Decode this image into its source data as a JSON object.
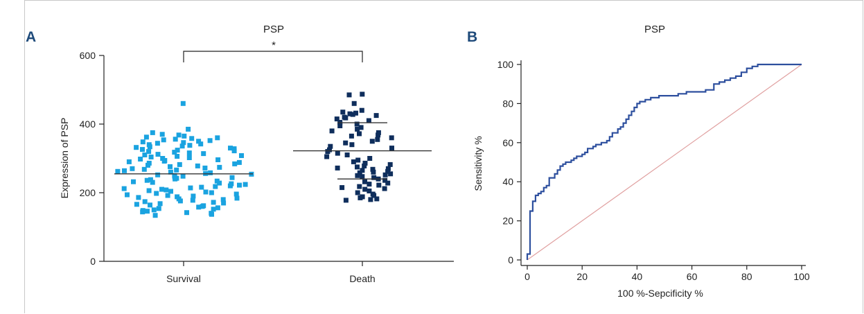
{
  "chart_data": [
    {
      "panel_label": "A",
      "type": "scatter",
      "title": "PSP",
      "ylabel": "Expression of PSP",
      "xlabel": "",
      "categories": [
        "Survival",
        "Death"
      ],
      "ylim": [
        0,
        600
      ],
      "yticks": [
        0,
        200,
        400,
        600
      ],
      "significance": "*",
      "colors": {
        "Survival": "#1aa3e0",
        "Death": "#0f2e5c",
        "lines": "#333333"
      },
      "summary": [
        {
          "group": "Survival",
          "mean": 255
        },
        {
          "group": "Death",
          "mean": 322,
          "sd_low": 240,
          "sd_high": 404
        }
      ],
      "series": [
        {
          "name": "Survival",
          "values": [
            460,
            385,
            375,
            370,
            368,
            365,
            362,
            360,
            358,
            356,
            354,
            352,
            350,
            348,
            346,
            344,
            342,
            340,
            338,
            336,
            334,
            332,
            330,
            328,
            326,
            324,
            322,
            320,
            318,
            316,
            314,
            312,
            310,
            308,
            306,
            304,
            302,
            300,
            298,
            296,
            294,
            292,
            290,
            288,
            286,
            284,
            282,
            280,
            278,
            276,
            274,
            272,
            270,
            268,
            266,
            264,
            262,
            260,
            258,
            256,
            254,
            252,
            250,
            248,
            246,
            244,
            242,
            240,
            238,
            236,
            234,
            232,
            230,
            228,
            226,
            224,
            222,
            220,
            218,
            216,
            214,
            212,
            210,
            208,
            206,
            204,
            202,
            200,
            198,
            196,
            194,
            192,
            190,
            188,
            186,
            184,
            182,
            180,
            178,
            176,
            174,
            172,
            170,
            168,
            166,
            164,
            162,
            160,
            158,
            156,
            154,
            152,
            150,
            148,
            146,
            144,
            142,
            140,
            137,
            134
          ]
        },
        {
          "name": "Death",
          "values": [
            487,
            485,
            460,
            440,
            435,
            432,
            430,
            428,
            425,
            420,
            418,
            415,
            410,
            405,
            400,
            395,
            390,
            385,
            380,
            375,
            372,
            368,
            365,
            360,
            355,
            350,
            345,
            340,
            335,
            330,
            325,
            320,
            315,
            310,
            305,
            300,
            295,
            290,
            286,
            282,
            278,
            275,
            272,
            270,
            268,
            265,
            262,
            260,
            258,
            255,
            252,
            250,
            247,
            244,
            240,
            236,
            232,
            228,
            225,
            222,
            218,
            215,
            212,
            210,
            205,
            200,
            196,
            192,
            188,
            185,
            182,
            180,
            178
          ]
        }
      ]
    },
    {
      "panel_label": "B",
      "type": "line",
      "title": "PSP",
      "xlabel": "100 %-Sepcificity %",
      "ylabel": "Sensitivity %",
      "xlim": [
        0,
        100
      ],
      "ylim": [
        0,
        100
      ],
      "xticks": [
        0,
        20,
        40,
        60,
        80,
        100
      ],
      "yticks": [
        0,
        20,
        40,
        60,
        80,
        100
      ],
      "colors": {
        "roc": "#2d4f9e",
        "reference": "#e0a0a0"
      },
      "series": [
        {
          "name": "ROC",
          "x": [
            0,
            0,
            1,
            1,
            1,
            1,
            2,
            2,
            3,
            3,
            4,
            4,
            5,
            5,
            6,
            6,
            7,
            7,
            8,
            8,
            10,
            10,
            11,
            11,
            12,
            12,
            13,
            13,
            14,
            14,
            16,
            16,
            17,
            17,
            18,
            18,
            20,
            20,
            21,
            21,
            22,
            22,
            24,
            24,
            25,
            25,
            27,
            27,
            29,
            29,
            30,
            30,
            31,
            31,
            33,
            33,
            34,
            34,
            35,
            35,
            36,
            36,
            37,
            37,
            38,
            38,
            39,
            39,
            40,
            40,
            41,
            41,
            43,
            43,
            45,
            45,
            48,
            48,
            50,
            50,
            52,
            52,
            55,
            55,
            58,
            58,
            62,
            62,
            65,
            65,
            68,
            68,
            70,
            70,
            72,
            72,
            74,
            74,
            76,
            76,
            78,
            78,
            80,
            80,
            82,
            82,
            84,
            84,
            86,
            86,
            100
          ],
          "y": [
            0,
            3,
            3,
            10,
            10,
            25,
            25,
            30,
            30,
            33,
            33,
            34,
            34,
            35,
            35,
            37,
            37,
            38,
            38,
            42,
            42,
            44,
            44,
            46,
            46,
            48,
            48,
            49,
            49,
            50,
            50,
            51,
            51,
            52,
            52,
            53,
            53,
            54,
            54,
            55,
            55,
            57,
            57,
            58,
            58,
            59,
            59,
            60,
            60,
            61,
            61,
            63,
            63,
            65,
            65,
            67,
            67,
            68,
            68,
            70,
            70,
            72,
            72,
            74,
            74,
            76,
            76,
            78,
            78,
            80,
            80,
            81,
            81,
            82,
            82,
            83,
            83,
            84,
            84,
            84,
            84,
            84,
            84,
            85,
            85,
            86,
            86,
            86,
            86,
            87,
            87,
            90,
            90,
            91,
            91,
            92,
            92,
            93,
            93,
            94,
            94,
            96,
            96,
            98,
            98,
            99,
            99,
            100,
            100,
            100,
            100
          ]
        },
        {
          "name": "Reference",
          "x": [
            0,
            100
          ],
          "y": [
            0,
            100
          ]
        }
      ]
    }
  ]
}
